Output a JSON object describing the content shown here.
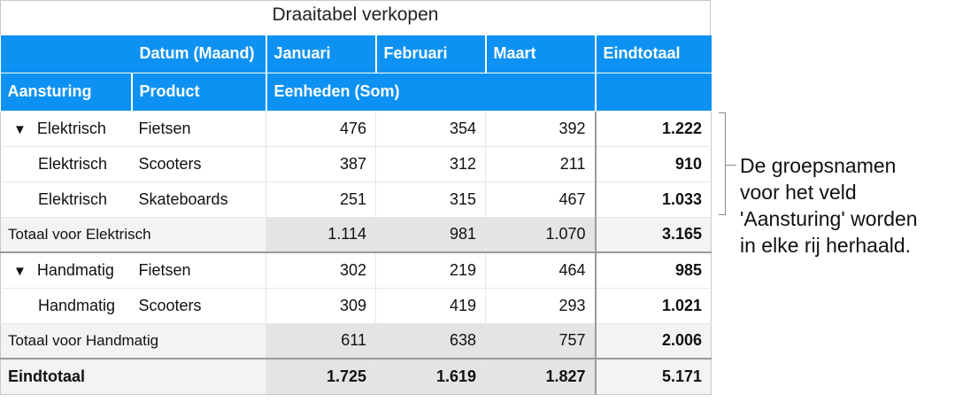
{
  "title": "Draaitabel verkopen",
  "header": {
    "datum_label": "Datum (Maand)",
    "columns": [
      "Januari",
      "Februari",
      "Maart",
      "Eindtotaal"
    ],
    "row_field_1": "Aansturing",
    "row_field_2": "Product",
    "value_field": "Eenheden (Som)"
  },
  "groups": [
    {
      "rows": [
        {
          "group": "Elektrisch",
          "product": "Fietsen",
          "values": [
            "476",
            "354",
            "392"
          ],
          "total": "1.222"
        },
        {
          "group": "Elektrisch",
          "product": "Scooters",
          "values": [
            "387",
            "312",
            "211"
          ],
          "total": "910"
        },
        {
          "group": "Elektrisch",
          "product": "Skateboards",
          "values": [
            "251",
            "315",
            "467"
          ],
          "total": "1.033"
        }
      ],
      "subtotal": {
        "label": "Totaal voor Elektrisch",
        "values": [
          "1.114",
          "981",
          "1.070"
        ],
        "total": "3.165"
      }
    },
    {
      "rows": [
        {
          "group": "Handmatig",
          "product": "Fietsen",
          "values": [
            "302",
            "219",
            "464"
          ],
          "total": "985"
        },
        {
          "group": "Handmatig",
          "product": "Scooters",
          "values": [
            "309",
            "419",
            "293"
          ],
          "total": "1.021"
        }
      ],
      "subtotal": {
        "label": "Totaal voor Handmatig",
        "values": [
          "611",
          "638",
          "757"
        ],
        "total": "2.006"
      }
    }
  ],
  "grand_total": {
    "label": "Eindtotaal",
    "values": [
      "1.725",
      "1.619",
      "1.827"
    ],
    "total": "5.171"
  },
  "annotation": {
    "lines": [
      "De groepsnamen",
      "voor het veld",
      "'Aansturing' worden",
      "in elke rij herhaald."
    ]
  },
  "colors": {
    "header_blue": "#0d92f3",
    "subtotal_gray": "#f3f3f3"
  },
  "icons": {
    "collapse": "disclosure-triangle-down"
  }
}
